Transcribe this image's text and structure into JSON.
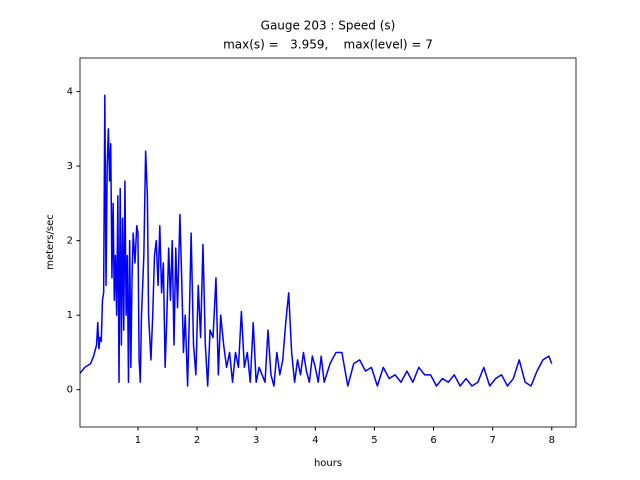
{
  "chart_data": {
    "type": "line",
    "title": "Gauge 203 : Speed (s)",
    "subtitle": "max(s) =   3.959,    max(level) = 7",
    "x_label": "hours",
    "y_label": "meters/sec",
    "xlim": [
      0.02,
      8.41
    ],
    "ylim": [
      -0.5,
      4.45
    ],
    "xticks": [
      1,
      2,
      3,
      4,
      5,
      6,
      7,
      8
    ],
    "yticks": [
      0,
      1,
      2,
      3,
      4
    ],
    "grid": false,
    "series": [
      {
        "color": "#0000ff",
        "x": [
          0.02,
          0.1,
          0.2,
          0.25,
          0.3,
          0.32,
          0.34,
          0.36,
          0.38,
          0.4,
          0.42,
          0.44,
          0.46,
          0.48,
          0.5,
          0.52,
          0.54,
          0.56,
          0.58,
          0.6,
          0.62,
          0.64,
          0.66,
          0.68,
          0.7,
          0.72,
          0.74,
          0.76,
          0.78,
          0.8,
          0.82,
          0.84,
          0.86,
          0.88,
          0.9,
          0.92,
          0.95,
          0.98,
          1.0,
          1.02,
          1.04,
          1.06,
          1.1,
          1.13,
          1.16,
          1.18,
          1.22,
          1.25,
          1.28,
          1.31,
          1.34,
          1.37,
          1.4,
          1.43,
          1.46,
          1.49,
          1.52,
          1.55,
          1.58,
          1.61,
          1.64,
          1.67,
          1.71,
          1.74,
          1.77,
          1.8,
          1.84,
          1.87,
          1.9,
          1.94,
          1.98,
          2.02,
          2.06,
          2.1,
          2.14,
          2.18,
          2.22,
          2.27,
          2.32,
          2.36,
          2.4,
          2.45,
          2.5,
          2.55,
          2.6,
          2.65,
          2.7,
          2.75,
          2.8,
          2.85,
          2.9,
          2.95,
          3.0,
          3.05,
          3.1,
          3.15,
          3.2,
          3.25,
          3.3,
          3.35,
          3.4,
          3.45,
          3.5,
          3.55,
          3.6,
          3.65,
          3.7,
          3.75,
          3.8,
          3.85,
          3.9,
          3.95,
          4.0,
          4.05,
          4.1,
          4.15,
          4.25,
          4.35,
          4.45,
          4.55,
          4.65,
          4.75,
          4.85,
          4.95,
          5.05,
          5.15,
          5.25,
          5.35,
          5.45,
          5.55,
          5.65,
          5.75,
          5.85,
          5.95,
          6.05,
          6.15,
          6.25,
          6.35,
          6.45,
          6.55,
          6.65,
          6.75,
          6.85,
          6.95,
          7.05,
          7.15,
          7.25,
          7.35,
          7.45,
          7.55,
          7.65,
          7.75,
          7.85,
          7.95,
          8.0
        ],
        "values": [
          0.22,
          0.3,
          0.35,
          0.45,
          0.6,
          0.9,
          0.55,
          0.7,
          0.65,
          1.2,
          1.3,
          3.95,
          1.4,
          3.0,
          3.5,
          2.8,
          3.3,
          1.5,
          2.5,
          1.2,
          1.8,
          1.0,
          2.6,
          0.1,
          2.7,
          0.6,
          2.3,
          0.8,
          2.8,
          1.0,
          1.8,
          0.1,
          2.0,
          0.3,
          1.5,
          2.1,
          1.7,
          2.2,
          2.1,
          0.4,
          0.1,
          1.0,
          1.8,
          3.2,
          2.6,
          1.0,
          0.4,
          1.0,
          1.8,
          2.0,
          1.4,
          2.2,
          1.3,
          1.7,
          0.3,
          1.0,
          1.9,
          1.2,
          2.0,
          0.6,
          1.9,
          1.1,
          2.35,
          1.5,
          0.5,
          1.0,
          0.05,
          1.0,
          2.1,
          0.6,
          0.2,
          1.4,
          0.7,
          1.95,
          0.6,
          0.05,
          0.8,
          0.7,
          1.5,
          0.2,
          1.0,
          0.6,
          0.3,
          0.5,
          0.1,
          0.5,
          0.3,
          1.05,
          0.3,
          0.5,
          0.1,
          0.9,
          0.1,
          0.3,
          0.2,
          0.1,
          0.8,
          0.2,
          0.05,
          0.5,
          0.2,
          0.4,
          0.9,
          1.3,
          0.5,
          0.1,
          0.4,
          0.2,
          0.5,
          0.25,
          0.1,
          0.45,
          0.3,
          0.1,
          0.45,
          0.1,
          0.35,
          0.5,
          0.5,
          0.05,
          0.35,
          0.4,
          0.25,
          0.3,
          0.05,
          0.3,
          0.15,
          0.2,
          0.1,
          0.25,
          0.1,
          0.3,
          0.2,
          0.2,
          0.05,
          0.15,
          0.1,
          0.2,
          0.05,
          0.15,
          0.05,
          0.1,
          0.3,
          0.05,
          0.15,
          0.2,
          0.05,
          0.15,
          0.4,
          0.1,
          0.05,
          0.25,
          0.4,
          0.45,
          0.35
        ]
      }
    ]
  }
}
